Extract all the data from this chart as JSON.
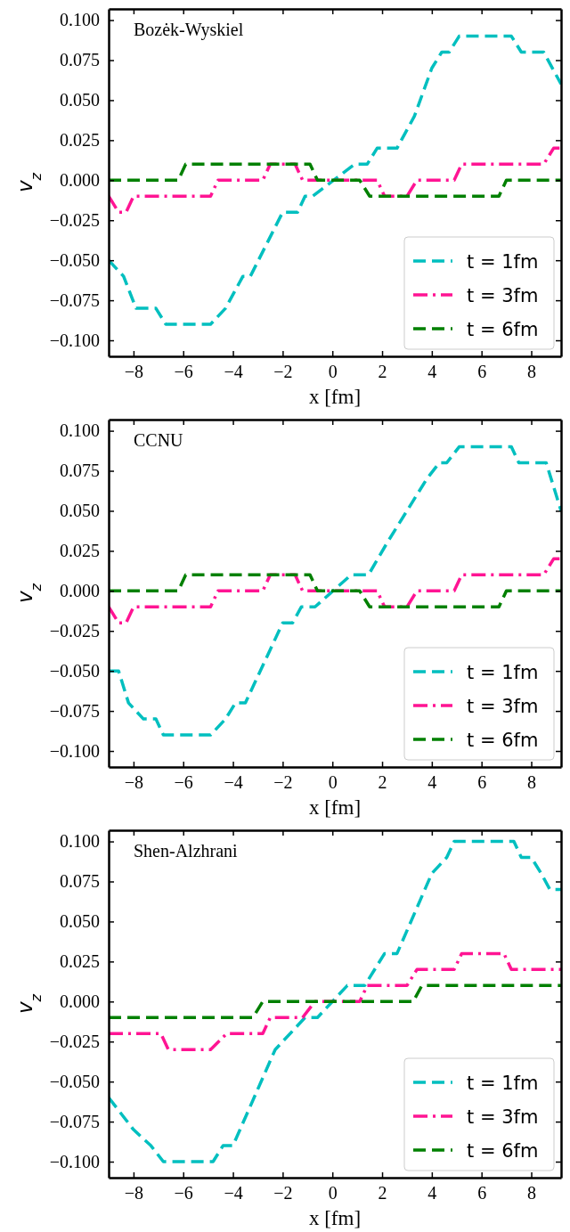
{
  "chart_data": [
    {
      "type": "line",
      "title": "Bozėk-Wyskiel",
      "xlabel": "x [fm]",
      "ylabel": "v$_{z}$",
      "xlim": [
        -9,
        9.2
      ],
      "ylim": [
        -0.11,
        0.107
      ],
      "xticks": [
        {
          "value": -8,
          "label": "−8"
        },
        {
          "value": -6,
          "label": "−6"
        },
        {
          "value": -4,
          "label": "−4"
        },
        {
          "value": -2,
          "label": "−2"
        },
        0,
        2,
        4,
        6,
        8
      ],
      "yticks": [
        {
          "value": -0.1,
          "label": "−0.100"
        },
        {
          "value": -0.075,
          "label": "−0.075"
        },
        {
          "value": -0.05,
          "label": "−0.050"
        },
        {
          "value": -0.025,
          "label": "−0.025"
        },
        {
          "value": 0,
          "label": "0.000"
        },
        {
          "value": 0.025,
          "label": "0.025"
        },
        {
          "value": 0.05,
          "label": "0.050"
        },
        {
          "value": 0.075,
          "label": "0.075"
        },
        {
          "value": 0.1,
          "label": "0.100"
        }
      ],
      "legend": "bottom right",
      "grid": false,
      "series": [
        {
          "name": "t = 1fm",
          "color": "#00bfbf",
          "line_style": "dashed",
          "x": [
            -9,
            -8.4,
            -7.9,
            -7.1,
            -6.7,
            -4.9,
            -4.3,
            -3.6,
            -3.3,
            -2.0,
            -1.4,
            -1.1,
            -0.8,
            0.9,
            1.4,
            1.8,
            2.6,
            3.3,
            4.0,
            4.4,
            4.7,
            5.1,
            7.2,
            7.6,
            8.5,
            9.2
          ],
          "values": [
            -0.05,
            -0.06,
            -0.08,
            -0.08,
            -0.09,
            -0.09,
            -0.08,
            -0.06,
            -0.06,
            -0.02,
            -0.02,
            -0.01,
            -0.01,
            0.01,
            0.01,
            0.02,
            0.02,
            0.04,
            0.07,
            0.08,
            0.08,
            0.09,
            0.09,
            0.08,
            0.08,
            0.06
          ]
        },
        {
          "name": "t = 3fm",
          "color": "#ff1493",
          "line_style": "dashdot",
          "x": [
            -9,
            -8.6,
            -8.3,
            -8.0,
            -4.9,
            -4.6,
            -2.8,
            -2.5,
            -1.5,
            -1.2,
            1.8,
            2.1,
            3.0,
            3.4,
            4.9,
            5.2,
            8.5,
            8.9,
            9.2
          ],
          "values": [
            -0.01,
            -0.02,
            -0.02,
            -0.01,
            -0.01,
            0,
            0,
            0.01,
            0.01,
            0,
            0,
            -0.01,
            -0.01,
            0,
            0,
            0.01,
            0.01,
            0.02,
            0.02
          ]
        },
        {
          "name": "t = 6fm",
          "color": "#008000",
          "line_style": "dashed",
          "x": [
            -9,
            -6.2,
            -5.9,
            -0.9,
            -0.6,
            1.1,
            1.5,
            6.7,
            7.0,
            9.2
          ],
          "values": [
            0,
            0,
            0.01,
            0.01,
            0,
            0,
            -0.01,
            -0.01,
            0,
            0
          ]
        }
      ]
    },
    {
      "type": "line",
      "title": "CCNU",
      "xlabel": "x [fm]",
      "ylabel": "v$_{z}$",
      "xlim": [
        -9,
        9.2
      ],
      "ylim": [
        -0.11,
        0.107
      ],
      "xticks": [
        {
          "value": -8,
          "label": "−8"
        },
        {
          "value": -6,
          "label": "−6"
        },
        {
          "value": -4,
          "label": "−4"
        },
        {
          "value": -2,
          "label": "−2"
        },
        0,
        2,
        4,
        6,
        8
      ],
      "yticks": [
        {
          "value": -0.1,
          "label": "−0.100"
        },
        {
          "value": -0.075,
          "label": "−0.075"
        },
        {
          "value": -0.05,
          "label": "−0.050"
        },
        {
          "value": -0.025,
          "label": "−0.025"
        },
        {
          "value": 0,
          "label": "0.000"
        },
        {
          "value": 0.025,
          "label": "0.025"
        },
        {
          "value": 0.05,
          "label": "0.050"
        },
        {
          "value": 0.075,
          "label": "0.075"
        },
        {
          "value": 0.1,
          "label": "0.100"
        }
      ],
      "legend": "bottom right",
      "grid": false,
      "series": [
        {
          "name": "t = 1fm",
          "color": "#00bfbf",
          "line_style": "dashed",
          "x": [
            -9,
            -8.6,
            -8.2,
            -7.6,
            -7.1,
            -6.8,
            -4.9,
            -4.3,
            -3.9,
            -3.5,
            -2.0,
            -1.6,
            -1.25,
            -0.7,
            0.75,
            1.45,
            2.2,
            3.0,
            3.8,
            4.3,
            4.6,
            5.1,
            7.2,
            7.5,
            8.6,
            9.2
          ],
          "values": [
            -0.05,
            -0.05,
            -0.07,
            -0.08,
            -0.08,
            -0.09,
            -0.09,
            -0.08,
            -0.07,
            -0.07,
            -0.02,
            -0.02,
            -0.01,
            -0.01,
            0.01,
            0.01,
            0.03,
            0.05,
            0.07,
            0.08,
            0.08,
            0.09,
            0.09,
            0.08,
            0.08,
            0.05
          ]
        },
        {
          "name": "t = 3fm",
          "color": "#ff1493",
          "line_style": "dashdot",
          "x": [
            -9,
            -8.6,
            -8.3,
            -8.0,
            -4.9,
            -4.6,
            -2.8,
            -2.5,
            -1.5,
            -1.2,
            1.8,
            2.1,
            3.0,
            3.4,
            4.9,
            5.2,
            8.5,
            8.9,
            9.2
          ],
          "values": [
            -0.01,
            -0.02,
            -0.02,
            -0.01,
            -0.01,
            0,
            0,
            0.01,
            0.01,
            0,
            0,
            -0.01,
            -0.01,
            0,
            0,
            0.01,
            0.01,
            0.02,
            0.02
          ]
        },
        {
          "name": "t = 6fm",
          "color": "#008000",
          "line_style": "dashed",
          "x": [
            -9,
            -6.2,
            -5.9,
            -0.9,
            -0.6,
            1.1,
            1.5,
            6.7,
            7.0,
            9.2
          ],
          "values": [
            0,
            0,
            0.01,
            0.01,
            0,
            0,
            -0.01,
            -0.01,
            0,
            0
          ]
        }
      ]
    },
    {
      "type": "line",
      "title": "Shen-Alzhrani",
      "xlabel": "x [fm]",
      "ylabel": "v$_{z}$",
      "xlim": [
        -9,
        9.2
      ],
      "ylim": [
        -0.11,
        0.107
      ],
      "xticks": [
        {
          "value": -8,
          "label": "−8"
        },
        {
          "value": -6,
          "label": "−6"
        },
        {
          "value": -4,
          "label": "−4"
        },
        {
          "value": -2,
          "label": "−2"
        },
        0,
        2,
        4,
        6,
        8
      ],
      "yticks": [
        {
          "value": -0.1,
          "label": "−0.100"
        },
        {
          "value": -0.075,
          "label": "−0.075"
        },
        {
          "value": -0.05,
          "label": "−0.050"
        },
        {
          "value": -0.025,
          "label": "−0.025"
        },
        {
          "value": 0,
          "label": "0.000"
        },
        {
          "value": 0.025,
          "label": "0.025"
        },
        {
          "value": 0.05,
          "label": "0.050"
        },
        {
          "value": 0.075,
          "label": "0.075"
        },
        {
          "value": 0.1,
          "label": "0.100"
        }
      ],
      "legend": "bottom right",
      "grid": false,
      "series": [
        {
          "name": "t = 1fm",
          "color": "#00bfbf",
          "line_style": "dashed",
          "x": [
            -9,
            -8.0,
            -7.3,
            -6.8,
            -4.8,
            -4.4,
            -4.0,
            -2.3,
            -1.1,
            -0.6,
            0.6,
            1.3,
            2.1,
            2.6,
            4.0,
            4.6,
            4.9,
            7.3,
            7.6,
            8.0,
            8.4,
            8.75,
            9.2
          ],
          "values": [
            -0.06,
            -0.08,
            -0.09,
            -0.1,
            -0.1,
            -0.09,
            -0.09,
            -0.03,
            -0.01,
            -0.01,
            0.01,
            0.01,
            0.03,
            0.03,
            0.08,
            0.09,
            0.1,
            0.1,
            0.09,
            0.09,
            0.08,
            0.07,
            0.07
          ]
        },
        {
          "name": "t = 3fm",
          "color": "#ff1493",
          "line_style": "dashdot",
          "x": [
            -9,
            -6.9,
            -6.6,
            -4.9,
            -4.25,
            -2.8,
            -2.5,
            -1.2,
            -0.7,
            1.1,
            1.4,
            3.0,
            3.4,
            4.9,
            5.2,
            6.9,
            7.2,
            9.2
          ],
          "values": [
            -0.02,
            -0.02,
            -0.03,
            -0.03,
            -0.02,
            -0.02,
            -0.01,
            -0.01,
            0,
            0,
            0.01,
            0.01,
            0.02,
            0.02,
            0.03,
            0.03,
            0.02,
            0.02
          ]
        },
        {
          "name": "t = 6fm",
          "color": "#008000",
          "line_style": "dashed",
          "x": [
            -9,
            -3.2,
            -2.8,
            3.25,
            3.6,
            9.2
          ],
          "values": [
            -0.01,
            -0.01,
            0,
            0,
            0.01,
            0.01
          ]
        }
      ]
    }
  ]
}
